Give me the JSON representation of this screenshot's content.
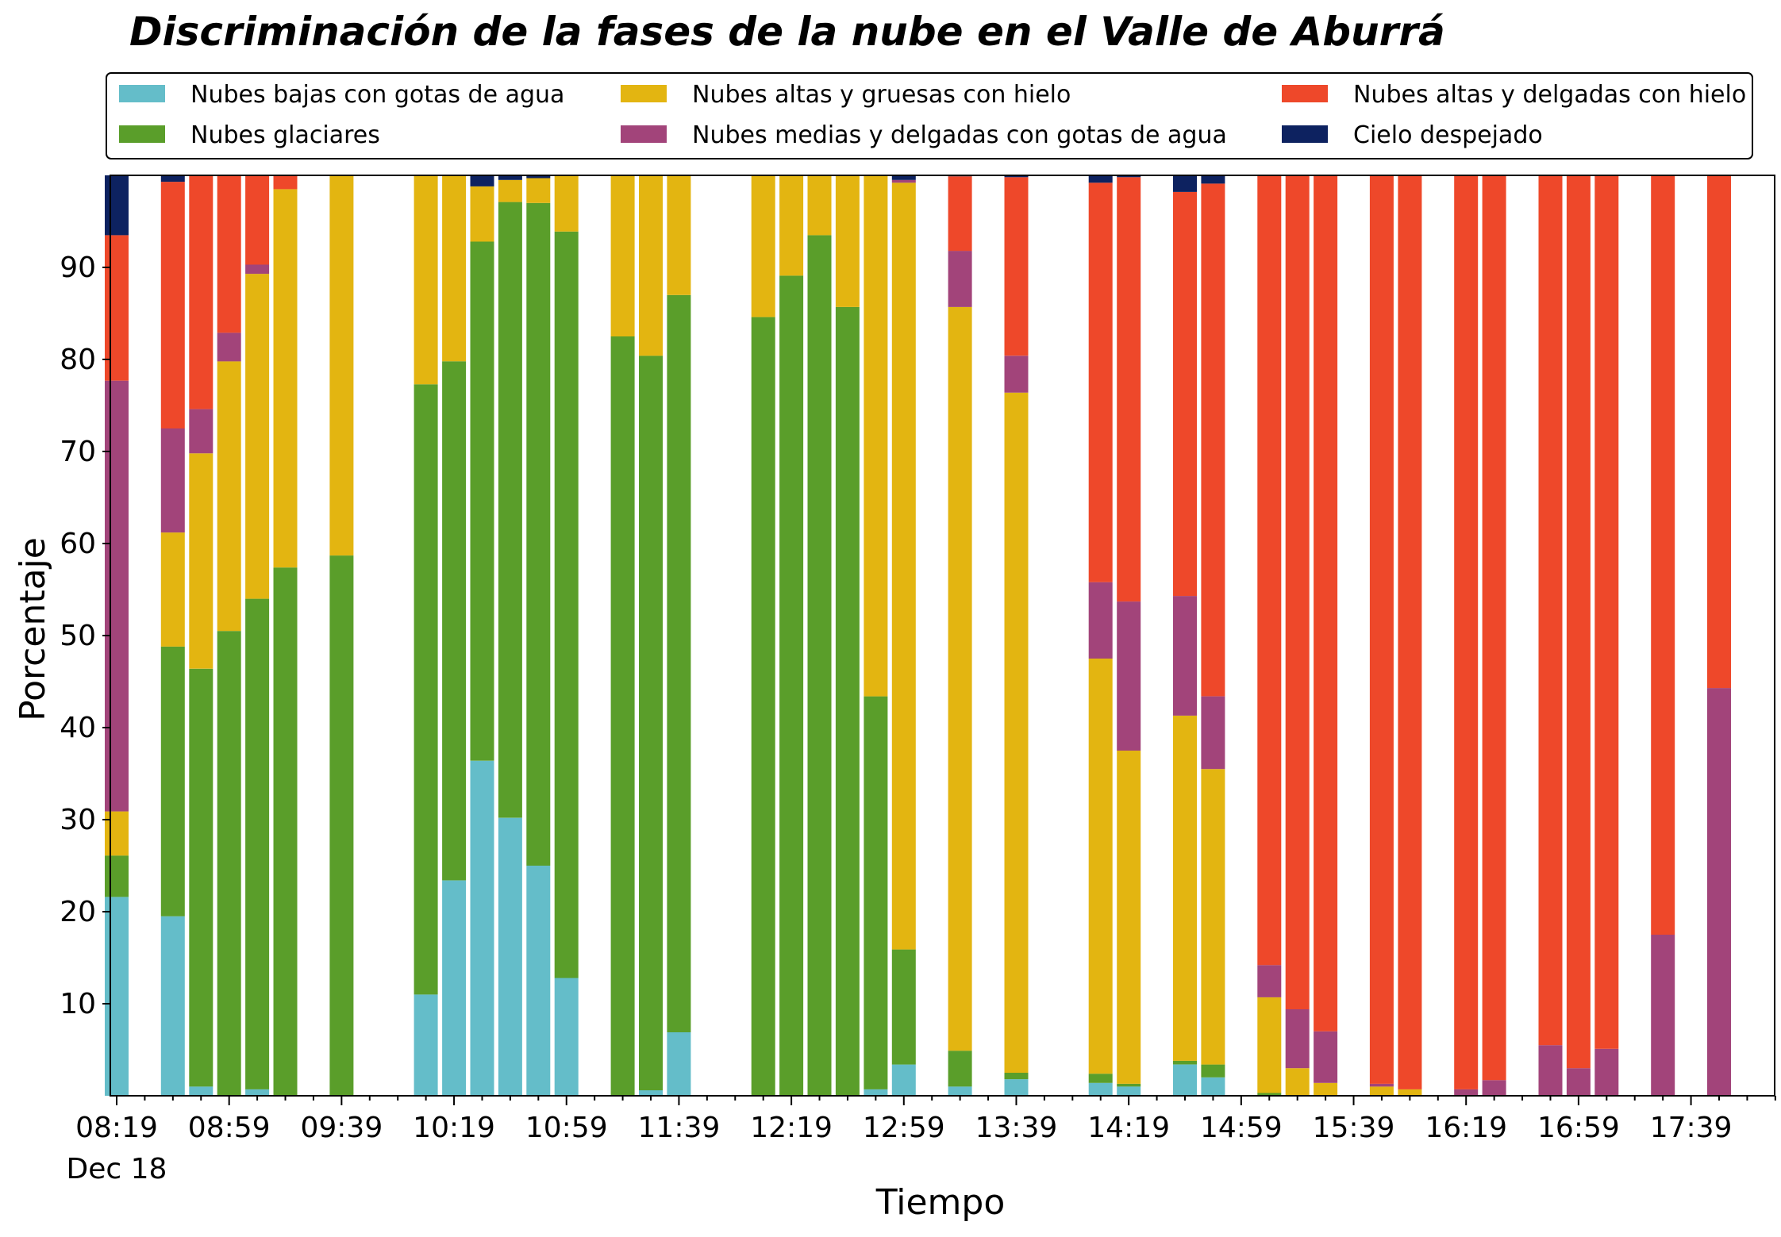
{
  "chart_data": {
    "type": "bar",
    "stacked": true,
    "title": "Discriminación de la fases de la nube en el Valle de Aburrá",
    "xlabel": "Tiempo",
    "ylabel": "Porcentaje",
    "ylim": [
      0,
      100
    ],
    "yticks": [
      10,
      20,
      30,
      40,
      50,
      60,
      70,
      80,
      90
    ],
    "xticks": [
      "08:19",
      "08:59",
      "09:39",
      "10:19",
      "10:59",
      "11:39",
      "12:19",
      "12:59",
      "13:39",
      "14:19",
      "14:59",
      "15:39",
      "16:19",
      "16:59",
      "17:39"
    ],
    "xdate_label": "Dec 18",
    "legend_position": "top",
    "series": [
      {
        "name": "Nubes bajas con gotas de agua",
        "color": "#64BDC9"
      },
      {
        "name": "Nubes glaciares",
        "color": "#5A9E2A"
      },
      {
        "name": "Nubes altas y gruesas con hielo",
        "color": "#E3B511"
      },
      {
        "name": "Nubes medias y delgadas con gotas de agua",
        "color": "#A2447A"
      },
      {
        "name": "Nubes altas y delgadas con hielo",
        "color": "#EE482A"
      },
      {
        "name": "Cielo despejado",
        "color": "#0D2260"
      }
    ],
    "bars": [
      {
        "time": "08:19",
        "values": [
          21.6,
          4.5,
          4.8,
          46.8,
          15.8,
          6.5
        ]
      },
      {
        "time": "08:39",
        "values": [
          19.5,
          29.3,
          12.4,
          11.3,
          26.8,
          0.7
        ]
      },
      {
        "time": "08:49",
        "values": [
          1.0,
          45.4,
          23.4,
          4.8,
          25.4,
          0.0
        ]
      },
      {
        "time": "08:59",
        "values": [
          0.0,
          50.5,
          29.3,
          3.1,
          17.1,
          0.0
        ]
      },
      {
        "time": "09:09",
        "values": [
          0.7,
          53.3,
          35.3,
          1.0,
          9.7,
          0.0
        ]
      },
      {
        "time": "09:19",
        "values": [
          0.0,
          57.4,
          41.1,
          0.0,
          1.5,
          0.0
        ]
      },
      {
        "time": "09:39",
        "values": [
          0.0,
          58.7,
          41.3,
          0.0,
          0.0,
          0.0
        ]
      },
      {
        "time": "10:09",
        "values": [
          11.0,
          66.3,
          22.7,
          0.0,
          0.0,
          0.0
        ]
      },
      {
        "time": "10:19",
        "values": [
          23.4,
          56.4,
          20.2,
          0.0,
          0.0,
          0.0
        ]
      },
      {
        "time": "10:29",
        "values": [
          36.4,
          56.4,
          6.0,
          0.0,
          0.0,
          1.2
        ]
      },
      {
        "time": "10:39",
        "values": [
          30.2,
          66.9,
          2.4,
          0.0,
          0.0,
          0.5
        ]
      },
      {
        "time": "10:49",
        "values": [
          25.0,
          72.0,
          2.7,
          0.0,
          0.0,
          0.3
        ]
      },
      {
        "time": "10:59",
        "values": [
          12.8,
          81.1,
          6.1,
          0.0,
          0.0,
          0.0
        ]
      },
      {
        "time": "11:19",
        "values": [
          0.0,
          82.5,
          17.5,
          0.0,
          0.0,
          0.0
        ]
      },
      {
        "time": "11:29",
        "values": [
          0.6,
          79.8,
          19.6,
          0.0,
          0.0,
          0.0
        ]
      },
      {
        "time": "11:39",
        "values": [
          6.9,
          80.1,
          13.0,
          0.0,
          0.0,
          0.0
        ]
      },
      {
        "time": "12:09",
        "values": [
          0.0,
          84.6,
          15.4,
          0.0,
          0.0,
          0.0
        ]
      },
      {
        "time": "12:19",
        "values": [
          0.0,
          89.1,
          10.9,
          0.0,
          0.0,
          0.0
        ]
      },
      {
        "time": "12:29",
        "values": [
          0.0,
          93.5,
          6.5,
          0.0,
          0.0,
          0.0
        ]
      },
      {
        "time": "12:39",
        "values": [
          0.0,
          85.7,
          14.3,
          0.0,
          0.0,
          0.0
        ]
      },
      {
        "time": "12:49",
        "values": [
          0.7,
          42.7,
          56.6,
          0.0,
          0.0,
          0.0
        ]
      },
      {
        "time": "12:59",
        "values": [
          3.4,
          12.5,
          83.3,
          0.3,
          0.0,
          0.5
        ]
      },
      {
        "time": "13:19",
        "values": [
          1.0,
          3.9,
          80.8,
          6.1,
          8.1,
          0.1
        ]
      },
      {
        "time": "13:39",
        "values": [
          1.8,
          0.7,
          73.9,
          4.0,
          19.4,
          0.2
        ]
      },
      {
        "time": "14:09",
        "values": [
          1.4,
          1.0,
          45.1,
          8.3,
          43.4,
          0.8
        ]
      },
      {
        "time": "14:19",
        "values": [
          1.0,
          0.3,
          36.2,
          16.2,
          46.1,
          0.2
        ]
      },
      {
        "time": "14:39",
        "values": [
          3.4,
          0.4,
          37.5,
          13.0,
          43.9,
          1.8
        ]
      },
      {
        "time": "14:49",
        "values": [
          2.0,
          1.4,
          32.1,
          7.9,
          55.7,
          0.9
        ]
      },
      {
        "time": "15:09",
        "values": [
          0.0,
          0.3,
          10.4,
          3.5,
          85.8,
          0.0
        ]
      },
      {
        "time": "15:19",
        "values": [
          0.0,
          0.0,
          3.0,
          6.4,
          90.6,
          0.0
        ]
      },
      {
        "time": "15:29",
        "values": [
          0.0,
          0.0,
          1.4,
          5.6,
          93.0,
          0.0
        ]
      },
      {
        "time": "15:49",
        "values": [
          0.0,
          0.0,
          1.0,
          0.3,
          98.7,
          0.0
        ]
      },
      {
        "time": "15:59",
        "values": [
          0.0,
          0.0,
          0.7,
          0.0,
          99.3,
          0.0
        ]
      },
      {
        "time": "16:19",
        "values": [
          0.0,
          0.0,
          0.0,
          0.7,
          99.3,
          0.0
        ]
      },
      {
        "time": "16:29",
        "values": [
          0.0,
          0.0,
          0.0,
          1.7,
          98.3,
          0.0
        ]
      },
      {
        "time": "16:49",
        "values": [
          0.0,
          0.0,
          0.0,
          5.5,
          94.5,
          0.0
        ]
      },
      {
        "time": "16:59",
        "values": [
          0.0,
          0.0,
          0.0,
          3.0,
          97.0,
          0.0
        ]
      },
      {
        "time": "17:09",
        "values": [
          0.0,
          0.0,
          0.0,
          5.1,
          94.9,
          0.0
        ]
      },
      {
        "time": "17:29",
        "values": [
          0.0,
          0.0,
          0.0,
          17.5,
          82.5,
          0.0
        ]
      },
      {
        "time": "17:49",
        "values": [
          0.0,
          0.0,
          0.0,
          44.3,
          55.7,
          0.0
        ]
      }
    ]
  }
}
